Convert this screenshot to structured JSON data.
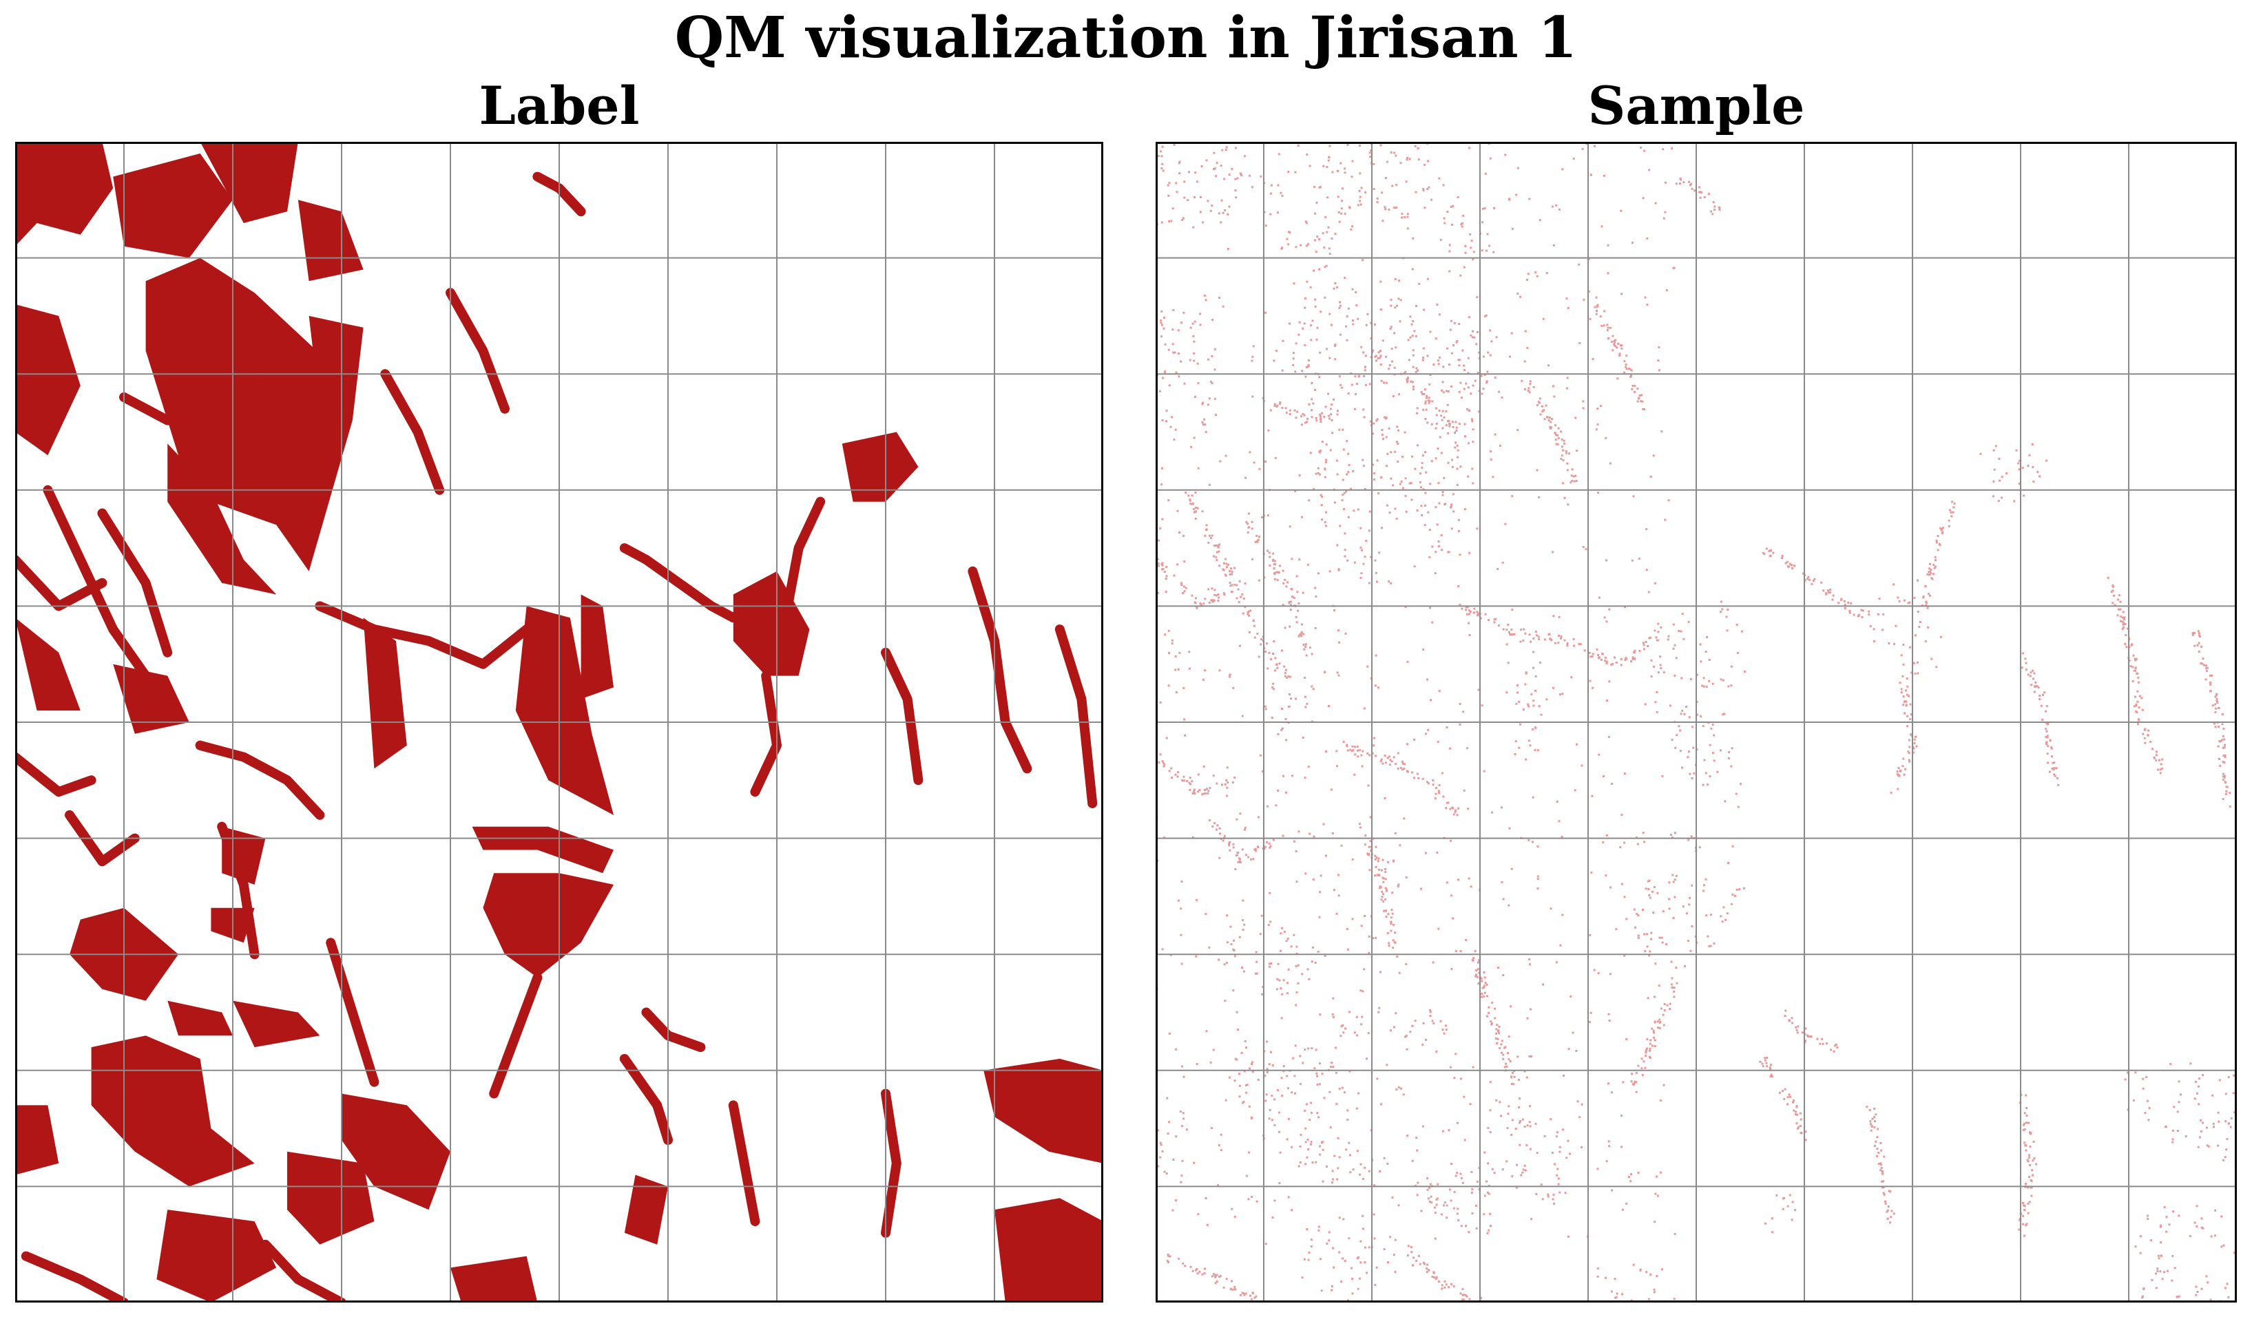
{
  "figure": {
    "title": "QM visualization in Jirisan 1",
    "panels": [
      {
        "id": "label",
        "title": "Label"
      },
      {
        "id": "sample",
        "title": "Sample"
      }
    ]
  },
  "grid": {
    "columns": 10,
    "rows": 10
  },
  "colors": {
    "label_fill": "#b01616",
    "sample_fill": "#e79a9a",
    "grid_line": "#8a8a8a",
    "frame": "#000000"
  }
}
